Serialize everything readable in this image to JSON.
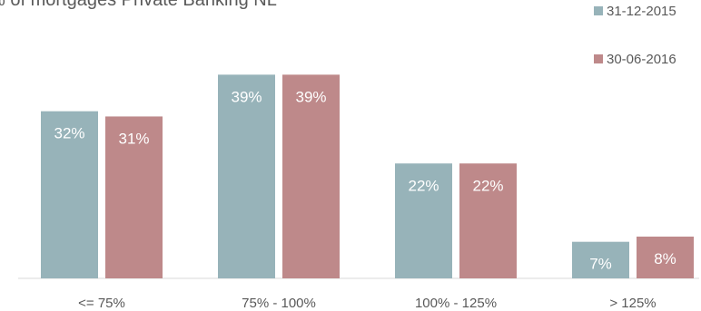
{
  "chart_data": {
    "type": "bar",
    "title": "% of mortgages Private Banking NL",
    "categories": [
      "<= 75%",
      "75% - 100%",
      "100% - 125%",
      "> 125%"
    ],
    "series": [
      {
        "name": "31-12-2015",
        "color": "#97b3b9",
        "values": [
          32,
          39,
          22,
          7
        ],
        "labels": [
          "32%",
          "39%",
          "22%",
          "7%"
        ]
      },
      {
        "name": "30-06-2016",
        "color": "#be898a",
        "values": [
          31,
          39,
          22,
          8
        ],
        "labels": [
          "31%",
          "39%",
          "22%",
          "8%"
        ]
      }
    ],
    "xlabel": "",
    "ylabel": "",
    "ylim": [
      0,
      40
    ],
    "grid": false,
    "legend_position": "top-right"
  }
}
